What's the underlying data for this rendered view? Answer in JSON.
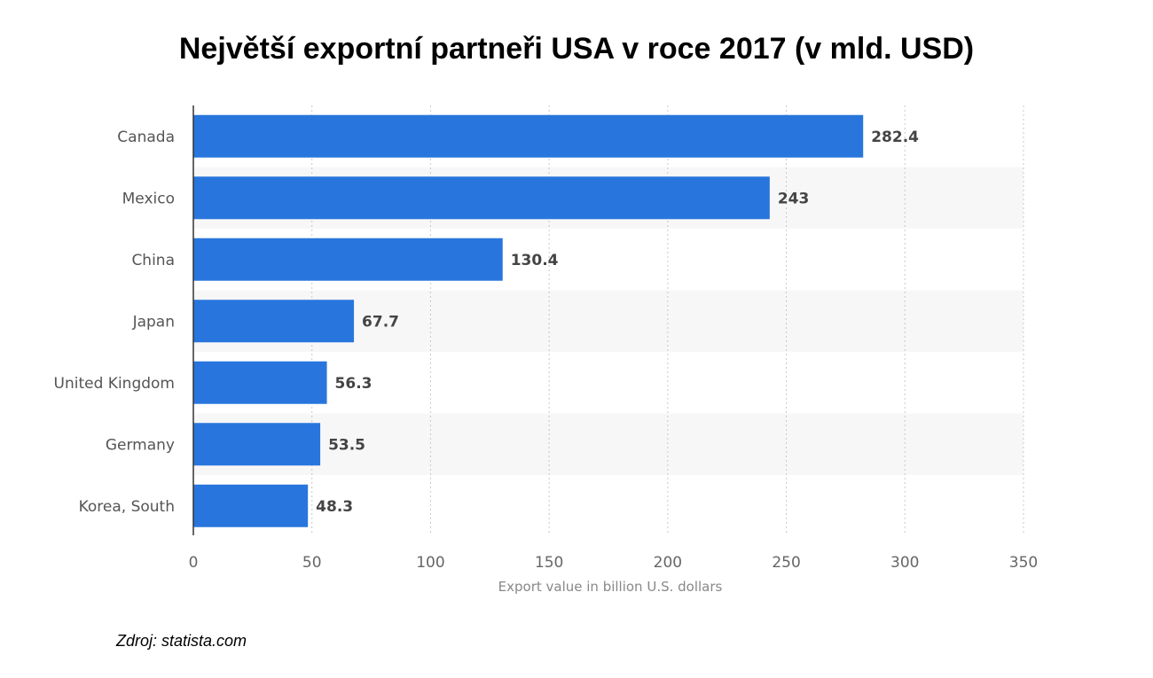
{
  "chart_data": {
    "type": "bar",
    "orientation": "horizontal",
    "title": "Největší exportní partneři USA v roce 2017 (v mld. USD)",
    "xlabel": "Export value in billion U.S. dollars",
    "ylabel": "",
    "categories": [
      "Canada",
      "Mexico",
      "China",
      "Japan",
      "United Kingdom",
      "Germany",
      "Korea, South"
    ],
    "values": [
      282.4,
      243,
      130.4,
      67.7,
      56.3,
      53.5,
      48.3
    ],
    "value_labels": [
      "282.4",
      "243",
      "130.4",
      "67.7",
      "56.3",
      "53.5",
      "48.3"
    ],
    "xlim": [
      0,
      350
    ],
    "xticks": [
      0,
      50,
      100,
      150,
      200,
      250,
      300,
      350
    ],
    "grid": true,
    "legend": "none",
    "bar_color": "#2876dd",
    "stripe_color": "#f7f7f7"
  },
  "source": "Zdroj: statista.com"
}
